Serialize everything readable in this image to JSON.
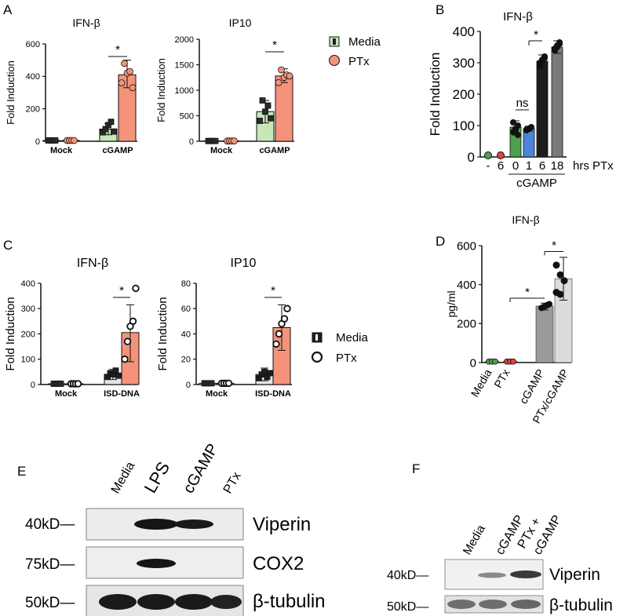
{
  "panels": {
    "A": "A",
    "B": "B",
    "C": "C",
    "D": "D",
    "E": "E",
    "F": "F"
  },
  "colors": {
    "media_A": "#c9e6b6",
    "ptx_A": "#f4937a",
    "media_C": "#e4e4e4",
    "ptx_C": "#f4937a",
    "D_media": "#1e1e1e",
    "D_ptx": "#1e1e1e",
    "D_cgamp": "#9a9a9a",
    "D_ptxcgamp": "#dcdcdc",
    "B_0": "#4ea04e",
    "B_1": "#4a86d8",
    "B_6": "#1e1e1e",
    "B_18": "#7a7a7a"
  },
  "legend_A": {
    "media": "Media",
    "ptx": "PTx"
  },
  "legend_C": {
    "media": "Media",
    "ptx": "PTx"
  },
  "panelB": {
    "time_labels": [
      "-",
      "6",
      "0",
      "1",
      "6",
      "18"
    ],
    "suffix": "hrs PTx",
    "group_label": "cGAMP"
  },
  "blotE": {
    "lanes": [
      "Media",
      "LPS",
      "cGAMP",
      "PTx"
    ],
    "rows": [
      {
        "marker": "40kD—",
        "protein": "Viperin"
      },
      {
        "marker": "75kD—",
        "protein": "COX2"
      },
      {
        "marker": "50kD—",
        "protein": "β-tubulin"
      }
    ]
  },
  "blotF": {
    "lanes": [
      "Media",
      "cGAMP",
      "PTx +",
      "cGAMP"
    ],
    "rows": [
      {
        "marker": "40kD—",
        "protein": "Viperin"
      },
      {
        "marker": "50kD—",
        "protein": "β-tubulin"
      }
    ]
  },
  "chart_data": [
    {
      "id": "A1",
      "type": "bar",
      "title": "IFN-β",
      "categories": [
        "Mock",
        "cGAMP"
      ],
      "series": [
        {
          "name": "Media",
          "values": [
            5,
            75
          ]
        },
        {
          "name": "PTx",
          "values": [
            5,
            410
          ]
        }
      ],
      "ylabel": "Fold Induction",
      "ylim": [
        0,
        600
      ],
      "yticks": [
        0,
        200,
        400,
        600
      ],
      "significance": "*"
    },
    {
      "id": "A2",
      "type": "bar",
      "title": "IP10",
      "categories": [
        "Mock",
        "cGAMP"
      ],
      "series": [
        {
          "name": "Media",
          "values": [
            5,
            580
          ]
        },
        {
          "name": "PTx",
          "values": [
            5,
            1280
          ]
        }
      ],
      "ylabel": "Fold Induction",
      "ylim": [
        0,
        2000
      ],
      "yticks": [
        0,
        500,
        1000,
        1500,
        2000
      ],
      "significance": "*"
    },
    {
      "id": "B",
      "type": "bar",
      "title": "IFN-β",
      "categories": [
        "-",
        "6",
        "0",
        "1",
        "6",
        "18"
      ],
      "values": [
        5,
        5,
        95,
        90,
        305,
        350
      ],
      "ylabel": "Fold Induction",
      "ylim": [
        0,
        400
      ],
      "yticks": [
        0,
        100,
        200,
        300,
        400
      ],
      "annotations": [
        "ns",
        "*"
      ]
    },
    {
      "id": "C1",
      "type": "bar",
      "title": "IFN-β",
      "categories": [
        "Mock",
        "ISD-DNA"
      ],
      "series": [
        {
          "name": "Media",
          "values": [
            3,
            40
          ]
        },
        {
          "name": "PTx",
          "values": [
            3,
            205
          ]
        }
      ],
      "ylabel": "Fold Induction",
      "ylim": [
        0,
        400
      ],
      "yticks": [
        0,
        100,
        200,
        300,
        400
      ],
      "significance": "*"
    },
    {
      "id": "C2",
      "type": "bar",
      "title": "IP10",
      "categories": [
        "Mock",
        "ISD-DNA"
      ],
      "series": [
        {
          "name": "Media",
          "values": [
            1,
            8
          ]
        },
        {
          "name": "PTx",
          "values": [
            1,
            45
          ]
        }
      ],
      "ylabel": "Fold Induction",
      "ylim": [
        0,
        80
      ],
      "yticks": [
        0,
        20,
        40,
        60,
        80
      ],
      "significance": "*"
    },
    {
      "id": "D",
      "type": "bar",
      "title": "IFN-β",
      "categories": [
        "Media",
        "PTx",
        "cGAMP",
        "PTx/cGAMP"
      ],
      "values": [
        5,
        5,
        290,
        430
      ],
      "ylabel": "pg/ml",
      "ylim": [
        0,
        600
      ],
      "yticks": [
        0,
        200,
        400,
        600
      ],
      "significance": [
        "*",
        "*"
      ]
    }
  ]
}
